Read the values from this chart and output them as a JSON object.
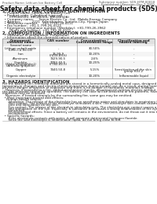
{
  "title": "Safety data sheet for chemical products (SDS)",
  "header_left": "Product Name: Lithium Ion Battery Cell",
  "header_right_line1": "Substance number: SDS-HYM-00018",
  "header_right_line2": "Established / Revision: Dec.7.2010",
  "section1_title": "1. PRODUCT AND COMPANY IDENTIFICATION",
  "section1_lines": [
    "  • Product name: Lithium Ion Battery Cell",
    "  • Product code: Cylindrical-type cell",
    "       (IHR18650U, IHR18650L, IHR18650A)",
    "  • Company name:     Sanyo Electric Co., Ltd.  Mobile Energy Company",
    "  • Address:           2221  Kamishinden, Sumoto-City, Hyogo, Japan",
    "  • Telephone number:    +81-(799)-24-4111",
    "  • Fax number:  +81-1-799-26-4123",
    "  • Emergency telephone number (Weekday): +81-799-26-3962",
    "       (Night and holiday): +81-799-26-4101"
  ],
  "section2_title": "2. COMPOSITION / INFORMATION ON INGREDIENTS",
  "section2_lines": [
    "  • Substance or preparation: Preparation",
    "  • Information about the chemical nature of product:"
  ],
  "table_col_headers": [
    "Component/\nchemical name",
    "CAS number",
    "Concentration /\nConcentration range",
    "Classification and\nhazard labeling"
  ],
  "table_sub_header": "Several name",
  "table_rows": [
    [
      "Lithium cobalt oxide\n(LiMn-Co-Ni-O4)",
      "-",
      "30-50%",
      "-"
    ],
    [
      "Iron",
      "26-99-9\n(7439-89-6)",
      "10-20%",
      "-"
    ],
    [
      "Aluminum",
      "7429-90-5",
      "2-6%",
      "-"
    ],
    [
      "Graphite\n(Flake or graphite-l)\n(Artificial graphite)",
      "7782-42-5\n(7782-42-5)",
      "10-25%",
      "-"
    ],
    [
      "Copper",
      "7440-50-8",
      "5-15%",
      "Sensitization of the skin\ngroup R43.2"
    ],
    [
      "Organic electrolyte",
      "-",
      "10-20%",
      "Inflammable liquid"
    ]
  ],
  "section3_title": "3. HAZARDS IDENTIFICATION",
  "section3_lines": [
    "For the battery cell, chemical materials are stored in a hermetically-sealed metal case, designed to withstand",
    "temperature changes and electro-chemical reactions during normal use. As a result, during normal use, there is no",
    "physical danger of ignition or explosion and there is no danger of hazardous materials leakage.",
    "   However, if exposed to a fire, added mechanical shocks, decomposed, written electric without dry mass use,",
    "the gas releases cannot be operated. The battery cell case will be breached of fire-patterns. hazardous",
    "materials may be released.",
    "   Moreover, if heated strongly by the surrounding fire, some gas may be emitted."
  ],
  "section3_bullet1": "  • Most important hazard and effects:",
  "section3_human_label": "    Human health effects:",
  "section3_human_lines": [
    "      Inhalation: The release of the electrolyte has an anesthesia action and stimulates to respiratory tract.",
    "      Skin contact: The release of the electrolyte stimulates a skin. The electrolyte skin contact causes a",
    "      sore and stimulation on the skin.",
    "      Eye contact: The release of the electrolyte stimulates eyes. The electrolyte eye contact causes a sore",
    "      and stimulation on the eye. Especially, a substance that causes a strong inflammation of the eyes is",
    "      concerned.",
    "      Environmental effects: Since a battery cell remains in the environment, do not throw out it into the",
    "      environment."
  ],
  "section3_bullet2": "  • Specific hazards:",
  "section3_specific_lines": [
    "      If the electrolyte contacts with water, it will generate detrimental hydrogen fluoride.",
    "      Since the seal electrolyte is inflammable liquid, do not bring close to fire."
  ],
  "bg_color": "#ffffff",
  "text_color": "#1a1a1a",
  "line_color": "#aaaaaa",
  "header_text_color": "#555555"
}
